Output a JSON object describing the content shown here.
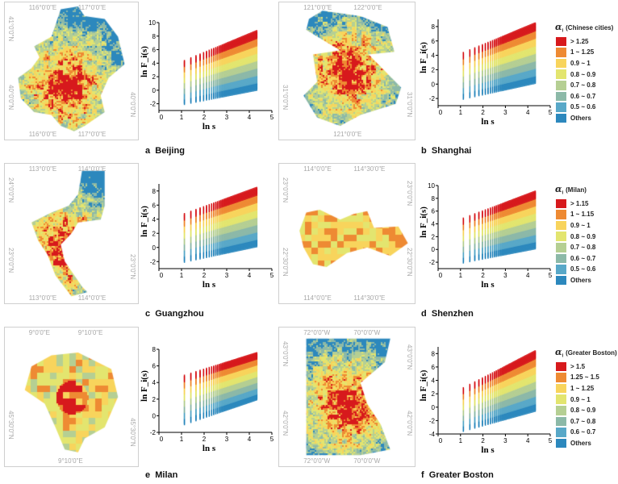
{
  "panels": [
    {
      "id": "a",
      "letter": "a",
      "city": "Beijing",
      "map": {
        "top": [
          "116°0'0\"E",
          "117°0'0\"E"
        ],
        "bottom": [
          "116°0'0\"E",
          "117°0'0\"E"
        ],
        "left": [
          "41°0'0\"N",
          "40°0'0\"N"
        ],
        "right": [
          "40°0'0\"N"
        ]
      }
    },
    {
      "id": "b",
      "letter": "b",
      "city": "Shanghai",
      "map": {
        "top": [
          "121°0'0\"E",
          "122°0'0\"E"
        ],
        "bottom": [
          "121°0'0\"E"
        ],
        "left": [
          "31°0'0\"N"
        ],
        "right": [
          "31°0'0\"N"
        ]
      }
    },
    {
      "id": "c",
      "letter": "c",
      "city": "Guangzhou",
      "map": {
        "top": [
          "113°0'0\"E",
          "114°0'0\"E"
        ],
        "bottom": [
          "113°0'0\"E",
          "114°0'0\"E"
        ],
        "left": [
          "24°0'0\"N",
          "23°0'0\"N"
        ],
        "right": [
          "23°0'0\"N"
        ]
      }
    },
    {
      "id": "d",
      "letter": "d",
      "city": "Shenzhen",
      "map": {
        "top": [
          "114°0'0\"E",
          "114°30'0\"E"
        ],
        "bottom": [
          "114°0'0\"E",
          "114°30'0\"E"
        ],
        "left": [
          "23°0'0\"N",
          "22°30'0\"N"
        ],
        "right": [
          "23°0'0\"N",
          "22°30'0\"N"
        ]
      }
    },
    {
      "id": "e",
      "letter": "e",
      "city": "Milan",
      "map": {
        "top": [
          "9°0'0\"E",
          "9°10'0\"E"
        ],
        "bottom": [
          "9°10'0\"E"
        ],
        "left": [
          "45°30'0\"N"
        ],
        "right": [
          "45°30'0\"N"
        ]
      }
    },
    {
      "id": "f",
      "letter": "f",
      "city": "Greater Boston",
      "map": {
        "top": [
          "72°0'0\"W",
          "70°0'0\"W"
        ],
        "bottom": [
          "72°0'0\"W",
          "70°0'0\"W"
        ],
        "left": [
          "43°0'0\"N",
          "42°0'0\"N"
        ],
        "right": [
          "43°0'0\"N",
          "42°0'0\"N"
        ]
      }
    }
  ],
  "legends": [
    {
      "title_symbol": "α",
      "title_sub": "i",
      "title_text": "(Chinese cities)",
      "entries": [
        {
          "label": "> 1.25",
          "color": "#d7191c"
        },
        {
          "label": "1 ~ 1.25",
          "color": "#ee8a33"
        },
        {
          "label": "0.9 ~ 1",
          "color": "#f8d45c"
        },
        {
          "label": "0.8 ~ 0.9",
          "color": "#e3e56f"
        },
        {
          "label": "0.7 ~ 0.8",
          "color": "#b5cf93"
        },
        {
          "label": "0.6 ~ 0.7",
          "color": "#8cb9a8"
        },
        {
          "label": "0.5 ~ 0.6",
          "color": "#58a8c8"
        },
        {
          "label": "Others",
          "color": "#2c88bd"
        }
      ]
    },
    {
      "title_symbol": "α",
      "title_sub": "i",
      "title_text": "(Milan)",
      "entries": [
        {
          "label": "> 1.15",
          "color": "#d7191c"
        },
        {
          "label": "1 ~ 1.15",
          "color": "#ee8a33"
        },
        {
          "label": "0.9 ~ 1",
          "color": "#f8d45c"
        },
        {
          "label": "0.8 ~ 0.9",
          "color": "#e3e56f"
        },
        {
          "label": "0.7 ~ 0.8",
          "color": "#b5cf93"
        },
        {
          "label": "0.6 ~ 0.7",
          "color": "#8cb9a8"
        },
        {
          "label": "0.5 ~ 0.6",
          "color": "#58a8c8"
        },
        {
          "label": "Others",
          "color": "#2c88bd"
        }
      ]
    },
    {
      "title_symbol": "α",
      "title_sub": "i",
      "title_text": "(Greater Boston)",
      "entries": [
        {
          "label": "> 1.5",
          "color": "#d7191c"
        },
        {
          "label": "1.25 ~ 1.5",
          "color": "#ee8a33"
        },
        {
          "label": "1 ~ 1.25",
          "color": "#f8d45c"
        },
        {
          "label": "0.9 ~ 1",
          "color": "#e3e56f"
        },
        {
          "label": "0.8 ~ 0.9",
          "color": "#b5cf93"
        },
        {
          "label": "0.7 ~ 0.8",
          "color": "#8cb9a8"
        },
        {
          "label": "0.6 ~ 0.7",
          "color": "#58a8c8"
        },
        {
          "label": "Others",
          "color": "#2c88bd"
        }
      ]
    }
  ],
  "chart_data": [
    {
      "panel": "a",
      "type": "scatter",
      "xlabel": "ln s",
      "ylabel": "ln F_i(s)",
      "xlim": [
        0,
        5
      ],
      "ylim": [
        -3,
        10
      ],
      "xticks": [
        0,
        1,
        2,
        3,
        4,
        5
      ],
      "yticks": [
        -2,
        0,
        2,
        4,
        6,
        8,
        10
      ],
      "grid": false,
      "legend": 0,
      "x_range": [
        1.1,
        4.3
      ],
      "y_range_at_start": [
        -2,
        4.3
      ],
      "y_range_at_end": [
        0.1,
        8.7
      ]
    },
    {
      "panel": "b",
      "type": "scatter",
      "xlabel": "ln s",
      "ylabel": "ln F_i(s)",
      "xlim": [
        0,
        5
      ],
      "ylim": [
        -3,
        9
      ],
      "xticks": [
        0,
        1,
        2,
        3,
        4,
        5
      ],
      "yticks": [
        -2,
        0,
        2,
        4,
        6,
        8
      ],
      "grid": false,
      "legend": 0,
      "x_range": [
        1.1,
        4.3
      ],
      "y_range_at_start": [
        -2,
        4.3
      ],
      "y_range_at_end": [
        0.2,
        8.4
      ]
    },
    {
      "panel": "c",
      "type": "scatter",
      "xlabel": "ln s",
      "ylabel": "ln F_i(s)",
      "xlim": [
        0,
        5
      ],
      "ylim": [
        -3,
        9
      ],
      "xticks": [
        0,
        1,
        2,
        3,
        4,
        5
      ],
      "yticks": [
        -2,
        0,
        2,
        4,
        6,
        8
      ],
      "grid": false,
      "legend": 0,
      "x_range": [
        1.1,
        4.3
      ],
      "y_range_at_start": [
        -2,
        4.7
      ],
      "y_range_at_end": [
        0.2,
        8.4
      ]
    },
    {
      "panel": "d",
      "type": "scatter",
      "xlabel": "ln s",
      "ylabel": "ln F_i(s)",
      "xlim": [
        0,
        5
      ],
      "ylim": [
        -3,
        10
      ],
      "xticks": [
        0,
        1,
        2,
        3,
        4,
        5
      ],
      "yticks": [
        -2,
        0,
        2,
        4,
        6,
        8,
        10
      ],
      "grid": false,
      "legend": 1,
      "x_range": [
        1.1,
        4.3
      ],
      "y_range_at_start": [
        -2,
        4.8
      ],
      "y_range_at_end": [
        0.2,
        9
      ]
    },
    {
      "panel": "e",
      "type": "scatter",
      "xlabel": "ln s",
      "ylabel": "ln F_i(s)",
      "xlim": [
        0,
        5
      ],
      "ylim": [
        -2,
        8
      ],
      "xticks": [
        0,
        1,
        2,
        3,
        4,
        5
      ],
      "yticks": [
        -2,
        0,
        2,
        4,
        6,
        8
      ],
      "grid": false,
      "legend": 1,
      "x_range": [
        1.1,
        4.3
      ],
      "y_range_at_start": [
        -1,
        4.8
      ],
      "y_range_at_end": [
        2,
        7.5
      ]
    },
    {
      "panel": "f",
      "type": "scatter",
      "xlabel": "ln s",
      "ylabel": "ln F_i(s)",
      "xlim": [
        0,
        5
      ],
      "ylim": [
        -4,
        9
      ],
      "xticks": [
        0,
        1,
        2,
        3,
        4,
        5
      ],
      "yticks": [
        -4,
        -2,
        0,
        2,
        4,
        6,
        8
      ],
      "grid": false,
      "legend": 2,
      "x_range": [
        1.1,
        4.3
      ],
      "y_range_at_start": [
        -3.5,
        2.8
      ],
      "y_range_at_end": [
        -0.5,
        8.3
      ]
    }
  ]
}
